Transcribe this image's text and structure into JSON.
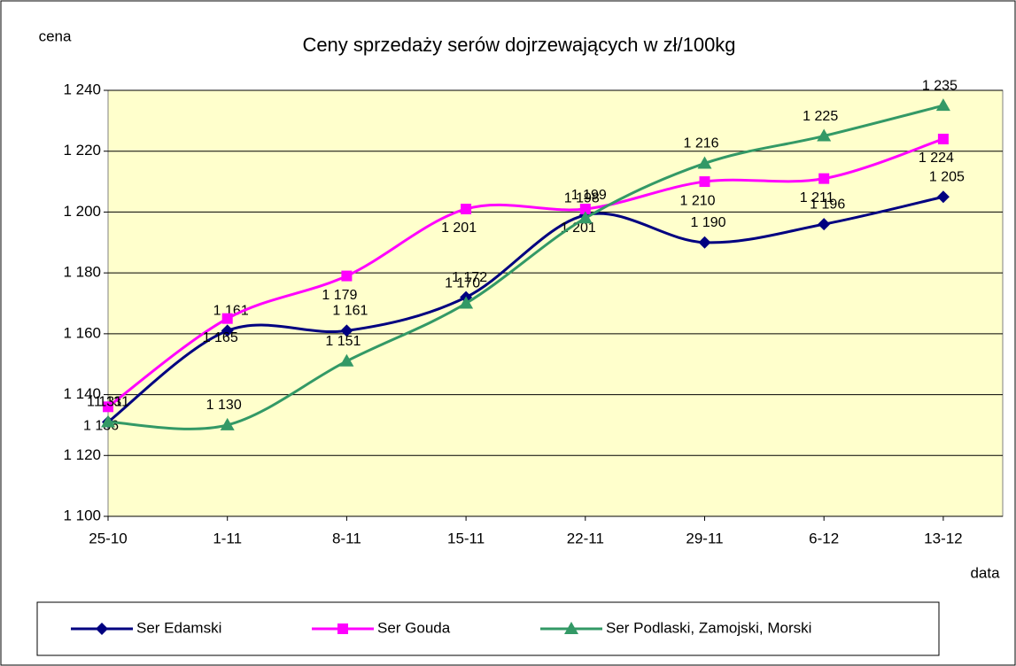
{
  "chart_data": {
    "type": "line",
    "title": "Ceny sprzedaży serów dojrzewających w zł/100kg",
    "y_label": "cena",
    "x_label": "data",
    "categories": [
      "25-10",
      "1-11",
      "8-11",
      "15-11",
      "22-11",
      "29-11",
      "6-12",
      "13-12"
    ],
    "ylim": [
      1100,
      1240
    ],
    "yticks": [
      {
        "value": 1100,
        "label": "1 100"
      },
      {
        "value": 1120,
        "label": "1 120"
      },
      {
        "value": 1140,
        "label": "1 140"
      },
      {
        "value": 1160,
        "label": "1 160"
      },
      {
        "value": 1180,
        "label": "1 180"
      },
      {
        "value": 1200,
        "label": "1 200"
      },
      {
        "value": 1220,
        "label": "1 220"
      },
      {
        "value": 1240,
        "label": "1 240"
      }
    ],
    "grid": true,
    "legend": "bottom",
    "series": [
      {
        "name": "Ser Edamski",
        "color": "#000080",
        "marker": "diamond",
        "values": [
          1131,
          1161,
          1161,
          1172,
          1199,
          1190,
          1196,
          1205
        ],
        "value_labels": [
          "1 131",
          "1 161",
          "1 161",
          "1 172",
          "1 199",
          "1 190",
          "1 196",
          "1 205"
        ]
      },
      {
        "name": "Ser Gouda",
        "color": "#ff00ff",
        "marker": "square",
        "values": [
          1136,
          1165,
          1179,
          1201,
          1201,
          1210,
          1211,
          1224
        ],
        "value_labels": [
          "1 136",
          "1 165",
          "1 179",
          "1 201",
          "1 201",
          "1 210",
          "1 211",
          "1 224"
        ]
      },
      {
        "name": "Ser Podlaski, Zamojski, Morski",
        "color": "#339966",
        "marker": "triangle",
        "values": [
          1131,
          1130,
          1151,
          1170,
          1198,
          1216,
          1225,
          1235
        ],
        "value_labels": [
          "1 131",
          "1 130",
          "1 151",
          "1 170",
          "1 198",
          "1 216",
          "1 225",
          "1 235"
        ]
      }
    ]
  }
}
